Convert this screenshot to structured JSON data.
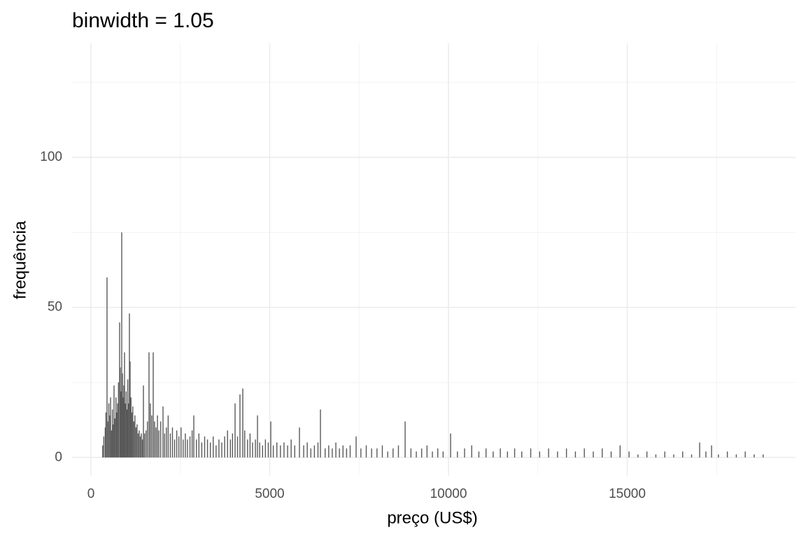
{
  "chart_data": {
    "type": "spikes",
    "title": "binwidth = 1.05",
    "x_label": "preço (US$)",
    "y_label": "frequência",
    "color": "#595959",
    "grid": true,
    "xlim": [
      -528,
      19706
    ],
    "ylim": [
      -6,
      138
    ],
    "xticks": [
      0,
      5000,
      10000,
      15000
    ],
    "yticks": [
      0,
      50,
      100
    ],
    "xminor": [
      2500,
      7500,
      12500,
      17500
    ],
    "yminor": [
      25,
      75,
      125
    ],
    "x": [
      326,
      360,
      400,
      420,
      450,
      470,
      500,
      530,
      548,
      575,
      600,
      625,
      646,
      670,
      700,
      720,
      745,
      770,
      802,
      820,
      840,
      861,
      880,
      900,
      920,
      939,
      960,
      985,
      1005,
      1030,
      1050,
      1076,
      1095,
      1120,
      1145,
      1170,
      1200,
      1230,
      1260,
      1290,
      1320,
      1350,
      1380,
      1410,
      1440,
      1468,
      1500,
      1540,
      1580,
      1624,
      1660,
      1700,
      1742,
      1780,
      1820,
      1860,
      1900,
      1950,
      2016,
      2060,
      2110,
      2160,
      2220,
      2280,
      2340,
      2400,
      2460,
      2520,
      2580,
      2640,
      2700,
      2770,
      2830,
      2877,
      2950,
      3020,
      3100,
      3180,
      3260,
      3340,
      3420,
      3500,
      3580,
      3660,
      3740,
      3820,
      3900,
      3960,
      4031,
      4100,
      4168,
      4247,
      4300,
      4380,
      4450,
      4520,
      4600,
      4658,
      4720,
      4800,
      4880,
      4960,
      5030,
      5100,
      5200,
      5300,
      5400,
      5500,
      5600,
      5700,
      5832,
      5950,
      6050,
      6150,
      6250,
      6350,
      6419,
      6550,
      6650,
      6750,
      6850,
      6950,
      7050,
      7150,
      7250,
      7417,
      7550,
      7700,
      7850,
      8000,
      8150,
      8300,
      8450,
      8600,
      8787,
      8950,
      9100,
      9250,
      9400,
      9550,
      9700,
      9850,
      10059,
      10250,
      10450,
      10650,
      10850,
      11050,
      11250,
      11450,
      11650,
      11850,
      12050,
      12300,
      12550,
      12800,
      13050,
      13300,
      13550,
      13800,
      14050,
      14300,
      14550,
      14800,
      15050,
      15300,
      15550,
      15800,
      16050,
      16300,
      16550,
      16800,
      17025,
      17200,
      17358,
      17550,
      17800,
      18050,
      18300,
      18550,
      18800
    ],
    "values": [
      4,
      7,
      10,
      15,
      60,
      12,
      18,
      14,
      20,
      9,
      16,
      11,
      24,
      13,
      20,
      15,
      18,
      25,
      45,
      30,
      22,
      75,
      28,
      20,
      24,
      35,
      18,
      22,
      16,
      26,
      18,
      48,
      32,
      20,
      15,
      17,
      12,
      14,
      10,
      11,
      8,
      9,
      7,
      8,
      6,
      24,
      8,
      9,
      12,
      35,
      18,
      14,
      35,
      12,
      10,
      14,
      9,
      12,
      17,
      8,
      10,
      14,
      8,
      10,
      6,
      9,
      7,
      10,
      6,
      8,
      6,
      7,
      9,
      14,
      6,
      8,
      5,
      7,
      6,
      5,
      7,
      4,
      6,
      5,
      7,
      9,
      6,
      8,
      18,
      7,
      21,
      23,
      9,
      6,
      8,
      5,
      6,
      14,
      5,
      4,
      6,
      5,
      12,
      4,
      5,
      4,
      5,
      4,
      6,
      4,
      10,
      4,
      5,
      3,
      4,
      5,
      16,
      3,
      4,
      3,
      5,
      3,
      4,
      3,
      4,
      7,
      3,
      4,
      3,
      3,
      4,
      2,
      3,
      4,
      12,
      3,
      2,
      3,
      4,
      2,
      3,
      2,
      8,
      2,
      3,
      4,
      2,
      3,
      2,
      3,
      2,
      3,
      2,
      3,
      2,
      3,
      2,
      3,
      2,
      3,
      2,
      3,
      2,
      4,
      2,
      1,
      2,
      1,
      2,
      1,
      2,
      1,
      5,
      2,
      4,
      1,
      2,
      1,
      2,
      1,
      1
    ]
  }
}
